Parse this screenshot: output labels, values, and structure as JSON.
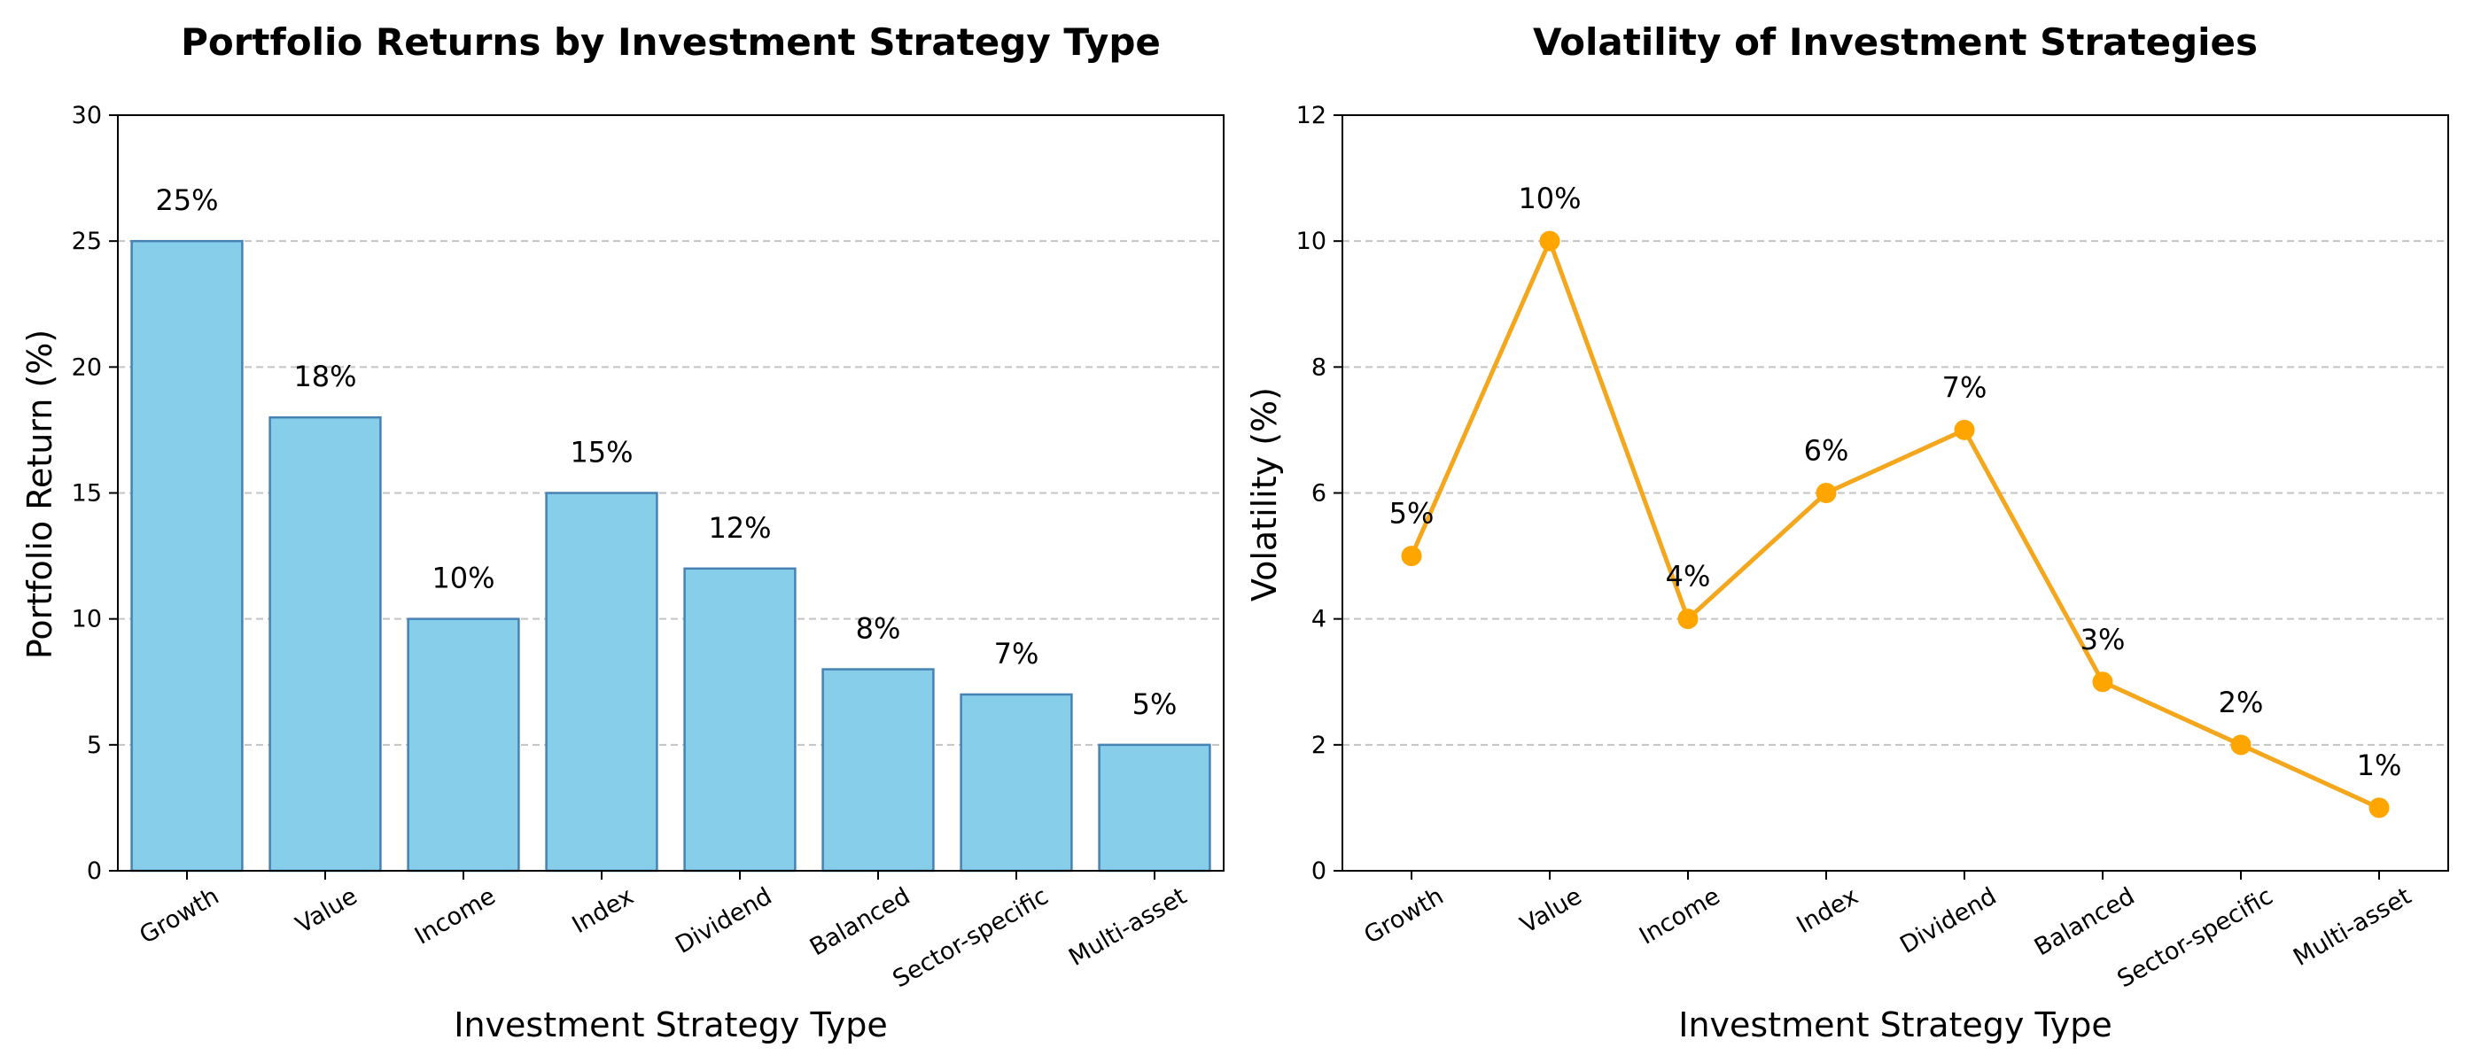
{
  "chart_data": [
    {
      "type": "bar",
      "title": "Portfolio Returns by Investment Strategy Type",
      "xlabel": "Investment Strategy Type",
      "ylabel": "Portfolio Return (%)",
      "categories": [
        "Growth",
        "Value",
        "Income",
        "Index",
        "Dividend",
        "Balanced",
        "Sector-specific",
        "Multi-asset"
      ],
      "values": [
        25,
        18,
        10,
        15,
        12,
        8,
        7,
        5
      ],
      "data_labels": [
        "25%",
        "18%",
        "10%",
        "15%",
        "12%",
        "8%",
        "7%",
        "5%"
      ],
      "ylim": [
        0,
        30
      ],
      "yticks": [
        0,
        5,
        10,
        15,
        20,
        25,
        30
      ],
      "grid": "y dashed",
      "colors": {
        "fill": "#87CEEB",
        "edge": "#4682B4"
      }
    },
    {
      "type": "line",
      "title": "Volatility of Investment Strategies",
      "xlabel": "Investment Strategy Type",
      "ylabel": "Volatility (%)",
      "categories": [
        "Growth",
        "Value",
        "Income",
        "Index",
        "Dividend",
        "Balanced",
        "Sector-specific",
        "Multi-asset"
      ],
      "values": [
        5,
        10,
        4,
        6,
        7,
        3,
        2,
        1
      ],
      "data_labels": [
        "5%",
        "10%",
        "4%",
        "6%",
        "7%",
        "3%",
        "2%",
        "1%"
      ],
      "ylim": [
        0,
        12
      ],
      "yticks": [
        0,
        2,
        4,
        6,
        8,
        10,
        12
      ],
      "grid": "y dashed",
      "colors": {
        "line": "#F4A71D",
        "marker": "#FFA500"
      }
    }
  ]
}
